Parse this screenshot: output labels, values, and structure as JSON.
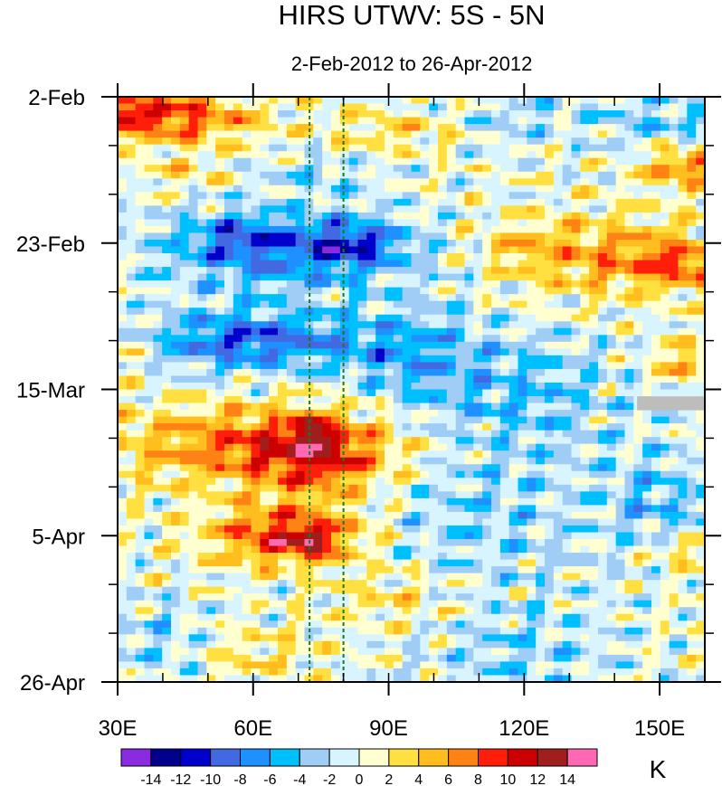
{
  "chart_data": {
    "type": "heatmap",
    "title": "HIRS UTWV: 5S - 5N",
    "subtitle": "2-Feb-2012 to 26-Apr-2012",
    "x_axis": {
      "range": [
        30,
        160
      ],
      "units": "degrees longitude east",
      "ticks": [
        {
          "value": 30,
          "label": "30E"
        },
        {
          "value": 60,
          "label": "60E"
        },
        {
          "value": 90,
          "label": "90E"
        },
        {
          "value": 120,
          "label": "120E"
        },
        {
          "value": 150,
          "label": "150E"
        }
      ],
      "minor_step": 10
    },
    "y_axis": {
      "range_days": [
        0,
        84
      ],
      "start_date": "2-Feb-2012",
      "direction": "time increases downward",
      "ticks": [
        {
          "day": 0,
          "label": "2-Feb"
        },
        {
          "day": 21,
          "label": "23-Feb"
        },
        {
          "day": 42,
          "label": "15-Mar"
        },
        {
          "day": 63,
          "label": "5-Apr"
        },
        {
          "day": 84,
          "label": "26-Apr"
        }
      ],
      "minor_step_days": 7
    },
    "reference_lines": [
      {
        "x": 72.5,
        "style": "dashed",
        "color": "#1a7a1a"
      },
      {
        "x": 80,
        "style": "dashed",
        "color": "#1a7a1a"
      }
    ],
    "missing_data": {
      "lon": [
        145,
        160
      ],
      "day": [
        43,
        45
      ],
      "color": "#bdbdbd"
    },
    "colorbar": {
      "units": "K",
      "levels": [
        -14,
        -12,
        -10,
        -8,
        -6,
        -4,
        -2,
        0,
        2,
        4,
        6,
        8,
        10,
        12,
        14
      ],
      "tick_labels": [
        "-14",
        "-12",
        "-10",
        "-8",
        "-6",
        "-4",
        "-2",
        "0",
        "2",
        "4",
        "6",
        "8",
        "10",
        "12",
        "14"
      ],
      "colors": [
        "#8a2be2",
        "#00008b",
        "#0000cd",
        "#4169e1",
        "#1e90ff",
        "#00bfff",
        "#a0cdf5",
        "#d8f4ff",
        "#ffffd0",
        "#ffe040",
        "#ffbe1e",
        "#ff8214",
        "#ff1e0a",
        "#cd0000",
        "#a01e1e",
        "#ff69b4"
      ]
    },
    "features": [
      {
        "lon": 40,
        "day": 3,
        "amp": 9,
        "sx": 14,
        "sy": 2.5
      },
      {
        "lon": 32,
        "day": 1,
        "amp": 4,
        "sx": 4,
        "sy": 1.5
      },
      {
        "lon": 90,
        "day": 5,
        "amp": 3,
        "sx": 10,
        "sy": 2
      },
      {
        "lon": 150,
        "day": 3,
        "amp": -3.5,
        "sx": 12,
        "sy": 3
      },
      {
        "lon": 118,
        "day": 3,
        "amp": -2.5,
        "sx": 8,
        "sy": 3
      },
      {
        "lon": 155,
        "day": 10,
        "amp": 7,
        "sx": 6,
        "sy": 2
      },
      {
        "lon": 75,
        "day": 11,
        "amp": -2.5,
        "sx": 10,
        "sy": 2
      },
      {
        "lon": 45,
        "day": 11,
        "amp": 3,
        "sx": 6,
        "sy": 1.5
      },
      {
        "lon": 68,
        "day": 22,
        "amp": -8,
        "sx": 20,
        "sy": 4
      },
      {
        "lon": 82,
        "day": 21,
        "amp": -6,
        "sx": 6,
        "sy": 2
      },
      {
        "lon": 56,
        "day": 20,
        "amp": -4,
        "sx": 6,
        "sy": 2
      },
      {
        "lon": 140,
        "day": 23,
        "amp": 6,
        "sx": 16,
        "sy": 4
      },
      {
        "lon": 155,
        "day": 24,
        "amp": 5,
        "sx": 6,
        "sy": 2
      },
      {
        "lon": 118,
        "day": 21,
        "amp": 3,
        "sx": 6,
        "sy": 2
      },
      {
        "lon": 60,
        "day": 35,
        "amp": -9,
        "sx": 16,
        "sy": 3
      },
      {
        "lon": 95,
        "day": 37,
        "amp": -5,
        "sx": 10,
        "sy": 5
      },
      {
        "lon": 120,
        "day": 42,
        "amp": -4,
        "sx": 15,
        "sy": 6
      },
      {
        "lon": 155,
        "day": 38,
        "amp": 5,
        "sx": 5,
        "sy": 2
      },
      {
        "lon": 31,
        "day": 36,
        "amp": 4,
        "sx": 3,
        "sy": 2
      },
      {
        "lon": 60,
        "day": 50,
        "amp": 7,
        "sx": 22,
        "sy": 4
      },
      {
        "lon": 75,
        "day": 52,
        "amp": 7,
        "sx": 10,
        "sy": 4
      },
      {
        "lon": 73,
        "day": 48,
        "amp": 5,
        "sx": 3,
        "sy": 1.5
      },
      {
        "lon": 68,
        "day": 63,
        "amp": 10,
        "sx": 12,
        "sy": 3
      },
      {
        "lon": 73,
        "day": 64,
        "amp": 5,
        "sx": 3,
        "sy": 1.5
      },
      {
        "lon": 150,
        "day": 58,
        "amp": -4,
        "sx": 8,
        "sy": 5
      },
      {
        "lon": 110,
        "day": 60,
        "amp": -3,
        "sx": 20,
        "sy": 8
      },
      {
        "lon": 155,
        "day": 65,
        "amp": 4,
        "sx": 5,
        "sy": 2
      },
      {
        "lon": 60,
        "day": 80,
        "amp": 2.5,
        "sx": 10,
        "sy": 3
      },
      {
        "lon": 120,
        "day": 80,
        "amp": -3,
        "sx": 15,
        "sy": 5
      },
      {
        "lon": 40,
        "day": 78,
        "amp": -3,
        "sx": 8,
        "sy": 4
      },
      {
        "lon": 92,
        "day": 72,
        "amp": 3,
        "sx": 10,
        "sy": 3
      }
    ]
  }
}
